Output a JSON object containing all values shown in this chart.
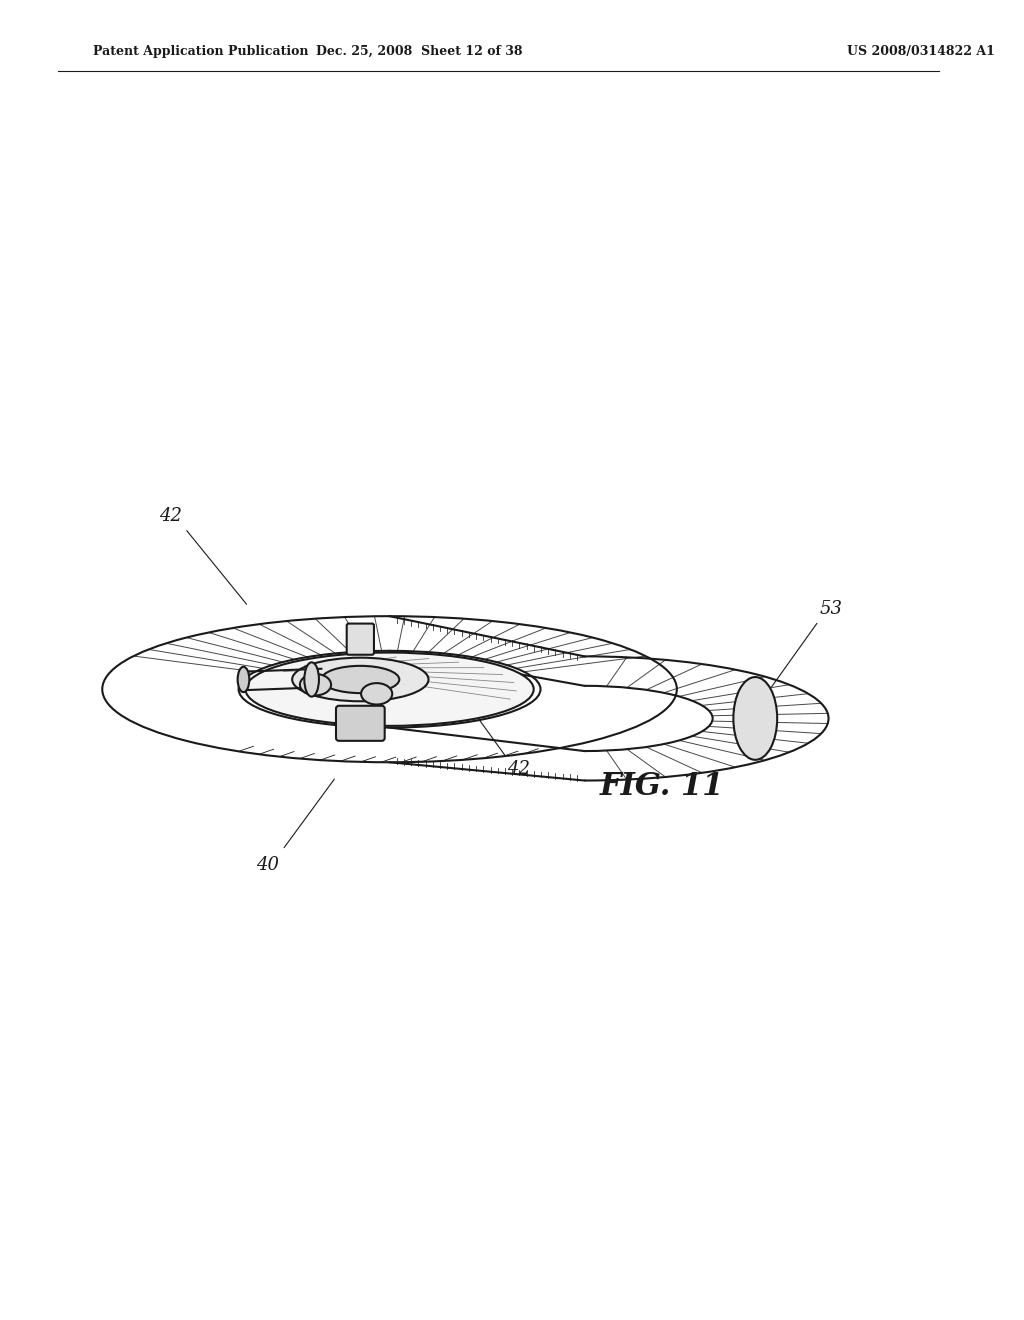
{
  "background_color": "#ffffff",
  "line_color": "#1a1a1a",
  "header_left": "Patent Application Publication",
  "header_mid": "Dec. 25, 2008  Sheet 12 of 38",
  "header_right": "US 2008/0314822 A1",
  "fig_label": "FIG. 11",
  "ref_40": "40",
  "ref_42a": "42",
  "ref_42b": "42",
  "ref_53": "53"
}
